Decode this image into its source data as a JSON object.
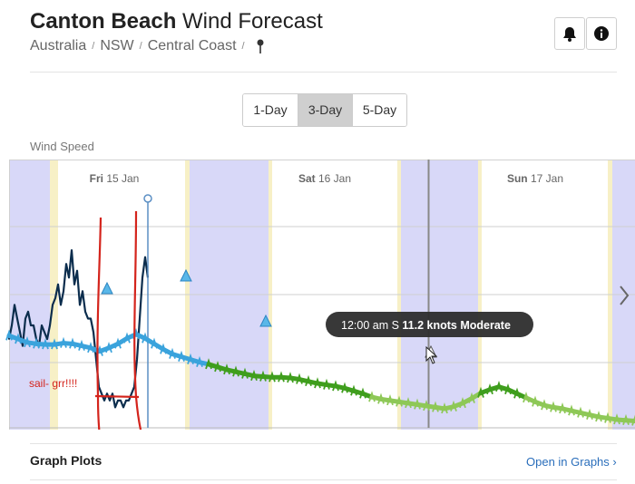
{
  "header": {
    "title_bold": "Canton Beach",
    "title_rest": " Wind Forecast",
    "breadcrumb": [
      "Australia",
      "NSW",
      "Central Coast"
    ]
  },
  "icons": {
    "bell": "bell-icon",
    "info": "info-icon",
    "pin": "location-pin-icon",
    "next": "chevron-right-icon",
    "link_arrow": "chevron-right-icon"
  },
  "tabs": [
    {
      "label": "1-Day",
      "active": false
    },
    {
      "label": "3-Day",
      "active": true
    },
    {
      "label": "5-Day",
      "active": false
    }
  ],
  "section_label": "Wind Speed",
  "chart_data": {
    "type": "line",
    "days": [
      {
        "weekday": "Fri",
        "date": "15 Jan"
      },
      {
        "weekday": "Sat",
        "date": "16 Jan"
      },
      {
        "weekday": "Sun",
        "date": "17 Jan"
      }
    ],
    "series": [
      {
        "observed_y": [
          13,
          15,
          18,
          16,
          14,
          12,
          16,
          17,
          15,
          15,
          13,
          12,
          15,
          14,
          13,
          15,
          18,
          19,
          21,
          18,
          20,
          24,
          22,
          26,
          21,
          23,
          18,
          20,
          17,
          16,
          16,
          14,
          10,
          6,
          5,
          4,
          5,
          4,
          5,
          3,
          4,
          4,
          3,
          4,
          4,
          5,
          6,
          10,
          16,
          22,
          25,
          22
        ]
      },
      {
        "forecast_y": [
          13.5,
          13,
          12.5,
          12.3,
          12.2,
          12.2,
          12.4,
          12.3,
          12,
          11.7,
          11.2,
          11.7,
          12.3,
          13.1,
          13.7,
          13.1,
          12.3,
          11.5,
          10.8,
          10.4,
          10,
          9.6,
          9.3,
          8.9,
          8.5,
          8.2,
          7.9,
          7.6,
          7.5,
          7.4,
          7.4,
          7.3,
          7.1,
          6.8,
          6.5,
          6.3,
          6.1,
          5.8,
          5.4,
          5,
          4.5,
          4.2,
          4,
          3.8,
          3.6,
          3.4,
          3.2,
          3,
          2.8,
          3.1,
          3.6,
          4.3,
          5.1,
          5.6,
          6,
          5.6,
          5,
          4.4,
          3.8,
          3.3,
          3,
          2.8,
          2.5,
          2.2,
          1.9,
          1.6,
          1.4,
          1.2,
          1.1,
          1
        ]
      }
    ],
    "ylim": [
      0,
      30
    ],
    "tooltip": {
      "time": "12:00 am",
      "direction": "S",
      "speed": "11.2 knots",
      "rating": "Moderate"
    },
    "annotation": "sail- grr!!!!",
    "colors": {
      "night": "#d8d8f8",
      "dawn": "#f7f0c6",
      "observed": "#0b2d4d",
      "fc_high": "#3aa3dc",
      "fc_mid": "#3f9e1d",
      "fc_low": "#8ec857",
      "annotation": "#d4241c"
    }
  },
  "footer": {
    "title": "Graph Plots",
    "link": "Open in Graphs"
  }
}
